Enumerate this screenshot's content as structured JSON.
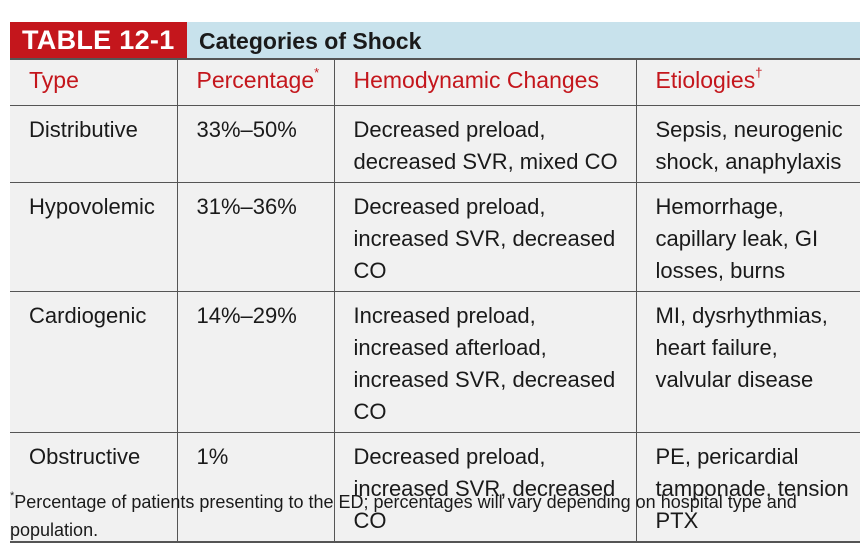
{
  "table_tag": "TABLE 12-1",
  "table_title": "Categories of Shock",
  "headers": [
    {
      "label": "Type",
      "mark": ""
    },
    {
      "label": "Percentage",
      "mark": "*"
    },
    {
      "label": "Hemodynamic Changes",
      "mark": ""
    },
    {
      "label": "Etiologies",
      "mark": "†"
    }
  ],
  "rows": [
    {
      "type": "Distributive",
      "percentage": "33%–50%",
      "hemodynamic": "Decreased preload, decreased SVR, mixed CO",
      "etiologies": "Sepsis, neurogenic shock, anaphylaxis"
    },
    {
      "type": "Hypovolemic",
      "percentage": "31%–36%",
      "hemodynamic": "Decreased preload, increased SVR, decreased CO",
      "etiologies": "Hemorrhage, capillary leak, GI losses, burns"
    },
    {
      "type": "Cardiogenic",
      "percentage": "14%–29%",
      "hemodynamic": "Increased preload, increased afterload, increased SVR, decreased CO",
      "etiologies": "MI, dysrhythmias, heart failure, valvular disease"
    },
    {
      "type": "Obstructive",
      "percentage": "1%",
      "hemodynamic": "Decreased preload, increased SVR, decreased CO",
      "etiologies": "PE, pericardial tamponade, tension PTX"
    }
  ],
  "footnote": {
    "mark": "*",
    "text": "Percentage of patients presenting to the ED; percentages will vary depending on hospital type and population."
  }
}
